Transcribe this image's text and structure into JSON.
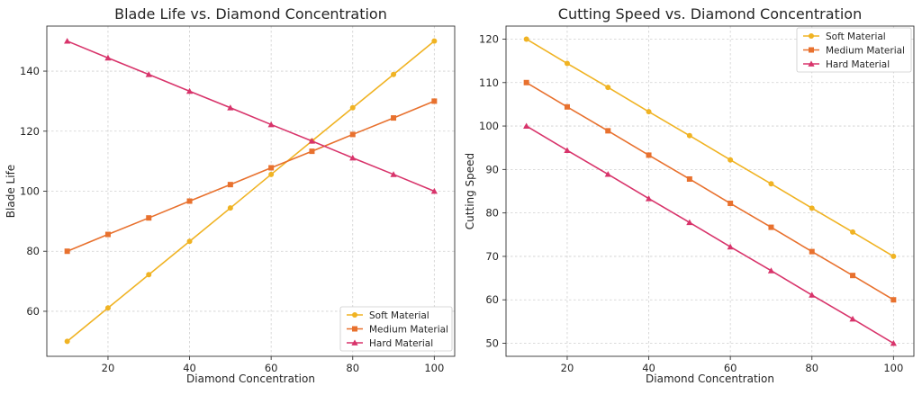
{
  "chart_data": [
    {
      "type": "line",
      "title": "Blade Life vs. Diamond Concentration",
      "xlabel": "Diamond Concentration",
      "ylabel": "Blade Life",
      "x": [
        10,
        20,
        30,
        40,
        50,
        60,
        70,
        80,
        90,
        100
      ],
      "xlim": [
        5,
        105
      ],
      "ylim": [
        45,
        155
      ],
      "xticks": [
        "20",
        "40",
        "60",
        "80",
        "100"
      ],
      "xtick_values": [
        20,
        40,
        60,
        80,
        100
      ],
      "yticks": [
        "60",
        "80",
        "100",
        "120",
        "140"
      ],
      "ytick_values": [
        60,
        80,
        100,
        120,
        140
      ],
      "grid": true,
      "legend_position": "lower-right",
      "series": [
        {
          "name": "Soft Material",
          "color": "#F0B323",
          "marker": "circle",
          "values": [
            50,
            61.1,
            72.2,
            83.3,
            94.4,
            105.6,
            116.7,
            127.8,
            138.9,
            150
          ]
        },
        {
          "name": "Medium Material",
          "color": "#E8712E",
          "marker": "square",
          "values": [
            80,
            85.6,
            91.1,
            96.7,
            102.2,
            107.8,
            113.3,
            118.9,
            124.4,
            130
          ]
        },
        {
          "name": "Hard Material",
          "color": "#D8346B",
          "marker": "triangle",
          "values": [
            150,
            144.4,
            138.9,
            133.3,
            127.8,
            122.2,
            116.7,
            111.1,
            105.6,
            100
          ]
        }
      ]
    },
    {
      "type": "line",
      "title": "Cutting Speed vs. Diamond Concentration",
      "xlabel": "Diamond Concentration",
      "ylabel": "Cutting Speed",
      "x": [
        10,
        20,
        30,
        40,
        50,
        60,
        70,
        80,
        90,
        100
      ],
      "xlim": [
        5,
        105
      ],
      "ylim": [
        47,
        123
      ],
      "xticks": [
        "20",
        "40",
        "60",
        "80",
        "100"
      ],
      "xtick_values": [
        20,
        40,
        60,
        80,
        100
      ],
      "yticks": [
        "50",
        "60",
        "70",
        "80",
        "90",
        "100",
        "110",
        "120"
      ],
      "ytick_values": [
        50,
        60,
        70,
        80,
        90,
        100,
        110,
        120
      ],
      "grid": true,
      "legend_position": "upper-right",
      "series": [
        {
          "name": "Soft Material",
          "color": "#F0B323",
          "marker": "circle",
          "values": [
            120,
            114.4,
            108.9,
            103.3,
            97.8,
            92.2,
            86.7,
            81.1,
            75.6,
            70
          ]
        },
        {
          "name": "Medium Material",
          "color": "#E8712E",
          "marker": "square",
          "values": [
            110,
            104.4,
            98.9,
            93.3,
            87.8,
            82.2,
            76.7,
            71.1,
            65.6,
            60
          ]
        },
        {
          "name": "Hard Material",
          "color": "#D8346B",
          "marker": "triangle",
          "values": [
            100,
            94.4,
            88.9,
            83.3,
            77.8,
            72.2,
            66.7,
            61.1,
            55.6,
            50
          ]
        }
      ]
    }
  ]
}
